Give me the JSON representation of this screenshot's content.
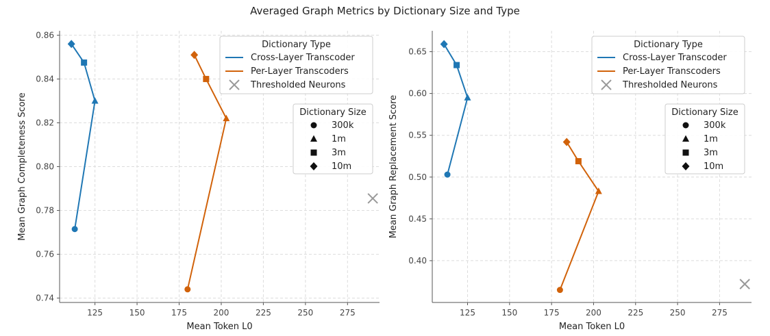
{
  "figure": {
    "title": "Averaged Graph Metrics by Dictionary Size and Type"
  },
  "legend_type": {
    "title": "Dictionary Type",
    "entries": [
      "Cross-Layer Transcoder",
      "Per-Layer Transcoders",
      "Thresholded Neurons"
    ]
  },
  "legend_size": {
    "title": "Dictionary Size",
    "entries": [
      "300k",
      "1m",
      "3m",
      "10m"
    ]
  },
  "colors": {
    "clt": "#1f77b4",
    "plt": "#d1620a",
    "neurons": "#999999",
    "grid": "#dcdcdc"
  },
  "chart_data": [
    {
      "type": "line",
      "xlabel": "Mean Token L0",
      "ylabel": "Mean Graph Completeness Score",
      "xlim": [
        104,
        294
      ],
      "ylim": [
        0.738,
        0.862
      ],
      "xticks": [
        125,
        150,
        175,
        200,
        225,
        250,
        275
      ],
      "yticks": [
        0.74,
        0.76,
        0.78,
        0.8,
        0.82,
        0.84,
        0.86
      ],
      "ytick_decimals": 2,
      "grid": true,
      "legend_type_position": "upper-right",
      "legend_size_position": "right",
      "series": [
        {
          "key": "clt",
          "points": [
            {
              "size": "300k",
              "marker": "circle",
              "x": 113,
              "y": 0.7715
            },
            {
              "size": "1m",
              "marker": "triangle",
              "x": 125,
              "y": 0.83
            },
            {
              "size": "3m",
              "marker": "square",
              "x": 118.5,
              "y": 0.8475
            },
            {
              "size": "10m",
              "marker": "diamond",
              "x": 111,
              "y": 0.856
            }
          ]
        },
        {
          "key": "plt",
          "points": [
            {
              "size": "300k",
              "marker": "circle",
              "x": 180,
              "y": 0.744
            },
            {
              "size": "1m",
              "marker": "triangle",
              "x": 203,
              "y": 0.822
            },
            {
              "size": "3m",
              "marker": "square",
              "x": 191,
              "y": 0.84
            },
            {
              "size": "10m",
              "marker": "diamond",
              "x": 184,
              "y": 0.851
            }
          ]
        }
      ],
      "neurons": {
        "x": 290,
        "y": 0.7855
      }
    },
    {
      "type": "line",
      "xlabel": "Mean Token L0",
      "ylabel": "Mean Graph Replacement Score",
      "xlim": [
        104,
        294
      ],
      "ylim": [
        0.35,
        0.675
      ],
      "xticks": [
        125,
        150,
        175,
        200,
        225,
        250,
        275
      ],
      "yticks": [
        0.4,
        0.45,
        0.5,
        0.55,
        0.6,
        0.65
      ],
      "ytick_decimals": 2,
      "grid": true,
      "legend_type_position": "upper-right",
      "legend_size_position": "right",
      "series": [
        {
          "key": "clt",
          "points": [
            {
              "size": "300k",
              "marker": "circle",
              "x": 113,
              "y": 0.503
            },
            {
              "size": "1m",
              "marker": "triangle",
              "x": 125,
              "y": 0.595
            },
            {
              "size": "3m",
              "marker": "square",
              "x": 118.5,
              "y": 0.634
            },
            {
              "size": "10m",
              "marker": "diamond",
              "x": 111,
              "y": 0.659
            }
          ]
        },
        {
          "key": "plt",
          "points": [
            {
              "size": "300k",
              "marker": "circle",
              "x": 180,
              "y": 0.365
            },
            {
              "size": "1m",
              "marker": "triangle",
              "x": 203,
              "y": 0.483
            },
            {
              "size": "3m",
              "marker": "square",
              "x": 191,
              "y": 0.519
            },
            {
              "size": "10m",
              "marker": "diamond",
              "x": 184,
              "y": 0.542
            }
          ]
        }
      ],
      "neurons": {
        "x": 290,
        "y": 0.372
      }
    }
  ]
}
